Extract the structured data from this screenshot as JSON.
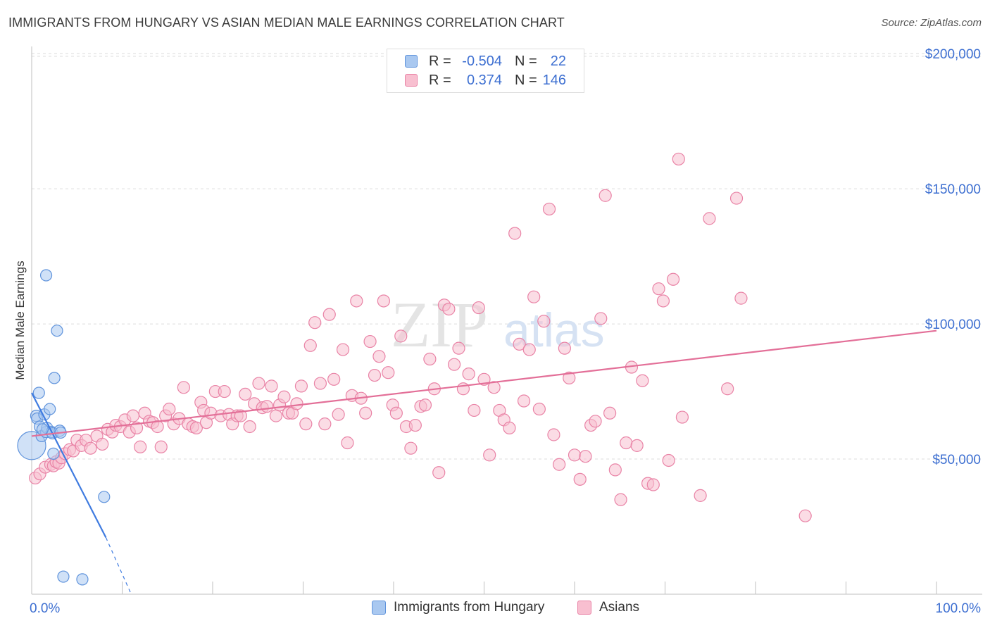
{
  "title": "IMMIGRANTS FROM HUNGARY VS ASIAN MEDIAN MALE EARNINGS CORRELATION CHART",
  "source": "Source: ZipAtlas.com",
  "watermark": "ZIPatlas",
  "legend": {
    "r_label": "R =",
    "n_label": "N =",
    "rows": [
      {
        "name": "Immigrants from Hungary",
        "r": "-0.504",
        "n": "22",
        "fill": "#a9c8f0",
        "stroke": "#5f93dc"
      },
      {
        "name": "Asians",
        "r": "0.374",
        "n": "146",
        "fill": "#f8bfd0",
        "stroke": "#e983a6"
      }
    ]
  },
  "chart_data": {
    "type": "scatter",
    "title": "IMMIGRANTS FROM HUNGARY VS ASIAN MEDIAN MALE EARNINGS CORRELATION CHART",
    "xlabel": "",
    "ylabel": "Median Male Earnings",
    "xlim": [
      0,
      100
    ],
    "ylim": [
      0,
      205000
    ],
    "x_tick_labels": [
      {
        "value": 0,
        "label": "0.0%"
      },
      {
        "value": 100,
        "label": "100.0%"
      }
    ],
    "y_ticks": [
      {
        "value": 50000,
        "label": "$50,000"
      },
      {
        "value": 100000,
        "label": "$100,000"
      },
      {
        "value": 150000,
        "label": "$150,000"
      },
      {
        "value": 200000,
        "label": "$200,000"
      }
    ],
    "grid": true,
    "series": [
      {
        "name": "Immigrants from Hungary",
        "color": "#5f93dc",
        "fill": "#a9c8f0",
        "trend": {
          "x0": 0,
          "y0": 74500,
          "x1": 8.2,
          "y1": 21000,
          "dash_to_x": 11,
          "dash_to_y": 0,
          "color": "#3f7be0"
        },
        "points": [
          [
            0.0,
            55000
          ],
          [
            0.5,
            66000
          ],
          [
            0.6,
            65000
          ],
          [
            0.8,
            74500
          ],
          [
            0.9,
            62000
          ],
          [
            1.1,
            58500
          ],
          [
            1.4,
            66500
          ],
          [
            1.6,
            60000
          ],
          [
            1.7,
            61500
          ],
          [
            1.6,
            118000
          ],
          [
            2.0,
            68500
          ],
          [
            2.2,
            60000
          ],
          [
            2.3,
            59500
          ],
          [
            2.4,
            52000
          ],
          [
            2.5,
            80000
          ],
          [
            2.8,
            97500
          ],
          [
            3.1,
            60500
          ],
          [
            3.2,
            59800
          ],
          [
            3.5,
            6500
          ],
          [
            5.6,
            5500
          ],
          [
            8.0,
            36000
          ],
          [
            1.2,
            61000
          ]
        ],
        "point_sizes": [
          20,
          8,
          8,
          8,
          8,
          8,
          8,
          8,
          8,
          8,
          8,
          8,
          8,
          8,
          8,
          8,
          8,
          8,
          8,
          8,
          8,
          8
        ]
      },
      {
        "name": "Asians",
        "color": "#e983a6",
        "fill": "#f8bfd0",
        "trend": {
          "x0": 0,
          "y0": 58500,
          "x1": 100,
          "y1": 97500,
          "color": "#e36f98"
        },
        "points": [
          [
            0.4,
            43000
          ],
          [
            0.9,
            44500
          ],
          [
            1.5,
            47000
          ],
          [
            2.1,
            48000
          ],
          [
            2.4,
            47500
          ],
          [
            2.7,
            49000
          ],
          [
            3.0,
            48500
          ],
          [
            3.3,
            50500
          ],
          [
            3.7,
            52000
          ],
          [
            4.2,
            53500
          ],
          [
            4.6,
            53000
          ],
          [
            5.0,
            57000
          ],
          [
            5.5,
            55000
          ],
          [
            6.0,
            57000
          ],
          [
            6.5,
            54000
          ],
          [
            7.2,
            58500
          ],
          [
            7.8,
            55500
          ],
          [
            8.4,
            61000
          ],
          [
            8.9,
            60000
          ],
          [
            9.3,
            62500
          ],
          [
            9.8,
            62000
          ],
          [
            10.3,
            64500
          ],
          [
            10.8,
            60000
          ],
          [
            11.2,
            66000
          ],
          [
            11.6,
            61500
          ],
          [
            12.0,
            54500
          ],
          [
            12.5,
            67000
          ],
          [
            13.0,
            64000
          ],
          [
            13.4,
            63500
          ],
          [
            13.9,
            62000
          ],
          [
            14.3,
            54500
          ],
          [
            14.8,
            66000
          ],
          [
            15.2,
            68500
          ],
          [
            15.7,
            63000
          ],
          [
            16.3,
            65000
          ],
          [
            16.8,
            76500
          ],
          [
            17.3,
            63000
          ],
          [
            17.8,
            62000
          ],
          [
            18.2,
            61500
          ],
          [
            18.7,
            71000
          ],
          [
            19.0,
            68000
          ],
          [
            19.3,
            63500
          ],
          [
            19.8,
            67000
          ],
          [
            20.3,
            75000
          ],
          [
            20.9,
            66000
          ],
          [
            21.3,
            75000
          ],
          [
            21.8,
            66500
          ],
          [
            22.2,
            63000
          ],
          [
            22.7,
            66000
          ],
          [
            23.1,
            66000
          ],
          [
            23.6,
            74000
          ],
          [
            24.1,
            62000
          ],
          [
            24.6,
            70500
          ],
          [
            25.1,
            78000
          ],
          [
            25.5,
            69000
          ],
          [
            26.0,
            69500
          ],
          [
            26.5,
            77000
          ],
          [
            27.0,
            66000
          ],
          [
            27.4,
            70000
          ],
          [
            27.9,
            73000
          ],
          [
            28.4,
            67000
          ],
          [
            28.8,
            67000
          ],
          [
            29.3,
            70500
          ],
          [
            29.8,
            77000
          ],
          [
            30.3,
            63000
          ],
          [
            30.8,
            92000
          ],
          [
            31.3,
            100500
          ],
          [
            31.9,
            78000
          ],
          [
            32.4,
            63000
          ],
          [
            32.9,
            103500
          ],
          [
            33.4,
            79500
          ],
          [
            33.9,
            66500
          ],
          [
            34.4,
            90500
          ],
          [
            34.9,
            56000
          ],
          [
            35.4,
            73500
          ],
          [
            35.9,
            108500
          ],
          [
            36.4,
            72500
          ],
          [
            36.9,
            67000
          ],
          [
            37.4,
            93500
          ],
          [
            37.9,
            81000
          ],
          [
            38.4,
            88000
          ],
          [
            38.9,
            108500
          ],
          [
            39.4,
            82000
          ],
          [
            39.9,
            70000
          ],
          [
            40.3,
            67000
          ],
          [
            40.8,
            95500
          ],
          [
            41.4,
            62000
          ],
          [
            41.9,
            54000
          ],
          [
            42.4,
            62500
          ],
          [
            43.0,
            69500
          ],
          [
            43.5,
            70000
          ],
          [
            44.0,
            87000
          ],
          [
            44.5,
            76000
          ],
          [
            45.0,
            45000
          ],
          [
            45.6,
            107000
          ],
          [
            46.1,
            105500
          ],
          [
            46.7,
            85000
          ],
          [
            47.2,
            91000
          ],
          [
            47.7,
            76000
          ],
          [
            48.3,
            81500
          ],
          [
            48.9,
            68000
          ],
          [
            49.4,
            106000
          ],
          [
            50.0,
            79500
          ],
          [
            50.6,
            51500
          ],
          [
            51.1,
            76500
          ],
          [
            51.7,
            68000
          ],
          [
            52.2,
            64500
          ],
          [
            52.8,
            61500
          ],
          [
            53.4,
            133500
          ],
          [
            53.9,
            92500
          ],
          [
            54.4,
            71500
          ],
          [
            55.0,
            90500
          ],
          [
            55.5,
            110000
          ],
          [
            56.1,
            68500
          ],
          [
            56.6,
            101000
          ],
          [
            57.2,
            142500
          ],
          [
            57.7,
            59000
          ],
          [
            58.3,
            48000
          ],
          [
            58.9,
            91000
          ],
          [
            59.4,
            80000
          ],
          [
            60.0,
            51500
          ],
          [
            60.6,
            42500
          ],
          [
            61.2,
            51000
          ],
          [
            61.8,
            62500
          ],
          [
            62.3,
            64000
          ],
          [
            62.9,
            102000
          ],
          [
            63.4,
            147500
          ],
          [
            63.9,
            67000
          ],
          [
            64.5,
            46000
          ],
          [
            65.1,
            35000
          ],
          [
            65.7,
            56000
          ],
          [
            66.3,
            84000
          ],
          [
            66.9,
            55000
          ],
          [
            67.5,
            79000
          ],
          [
            68.1,
            41000
          ],
          [
            68.7,
            40500
          ],
          [
            69.3,
            113000
          ],
          [
            69.8,
            108500
          ],
          [
            70.4,
            49500
          ],
          [
            70.9,
            116500
          ],
          [
            71.5,
            161000
          ],
          [
            71.9,
            65500
          ],
          [
            73.9,
            36500
          ],
          [
            74.9,
            139000
          ],
          [
            76.9,
            76000
          ],
          [
            77.9,
            146500
          ],
          [
            78.4,
            109500
          ],
          [
            85.5,
            29000
          ]
        ]
      }
    ]
  }
}
